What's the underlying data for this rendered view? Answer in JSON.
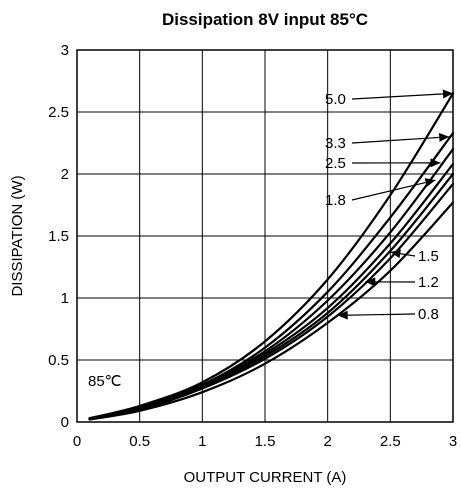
{
  "chart_data": {
    "type": "line",
    "title": "Dissipation 8V input 85°C",
    "xlabel": "OUTPUT CURRENT (A)",
    "ylabel": "DISSIPATION (W)",
    "xlim": [
      0,
      3
    ],
    "ylim": [
      0,
      3
    ],
    "x_ticks": [
      "0",
      "0.5",
      "1",
      "1.5",
      "2",
      "2.5",
      "3"
    ],
    "y_ticks": [
      "0",
      "0.5",
      "1",
      "1.5",
      "2",
      "2.5",
      "3"
    ],
    "grid": true,
    "annotation": "85℃",
    "series": [
      {
        "name": "5.0",
        "x": [
          0.1,
          0.5,
          1.0,
          1.5,
          2.0,
          2.5,
          3.0
        ],
        "y": [
          0.03,
          0.13,
          0.32,
          0.65,
          1.15,
          1.83,
          2.65
        ]
      },
      {
        "name": "3.3",
        "x": [
          0.1,
          0.5,
          1.0,
          1.5,
          2.0,
          2.5,
          3.0
        ],
        "y": [
          0.03,
          0.12,
          0.3,
          0.6,
          1.05,
          1.65,
          2.33
        ]
      },
      {
        "name": "2.5",
        "x": [
          0.1,
          0.5,
          1.0,
          1.5,
          2.0,
          2.5,
          3.0
        ],
        "y": [
          0.03,
          0.12,
          0.3,
          0.57,
          0.98,
          1.53,
          2.2
        ]
      },
      {
        "name": "1.8",
        "x": [
          0.1,
          0.5,
          1.0,
          1.5,
          2.0,
          2.5,
          3.0
        ],
        "y": [
          0.03,
          0.11,
          0.29,
          0.55,
          0.92,
          1.44,
          2.08
        ]
      },
      {
        "name": "1.5",
        "x": [
          0.1,
          0.5,
          1.0,
          1.5,
          2.0,
          2.5,
          3.0
        ],
        "y": [
          0.03,
          0.11,
          0.28,
          0.53,
          0.88,
          1.38,
          2.0
        ]
      },
      {
        "name": "1.2",
        "x": [
          0.1,
          0.5,
          1.0,
          1.5,
          2.0,
          2.5,
          3.0
        ],
        "y": [
          0.03,
          0.1,
          0.27,
          0.51,
          0.85,
          1.32,
          1.92
        ]
      },
      {
        "name": "0.8",
        "x": [
          0.1,
          0.5,
          1.0,
          1.5,
          2.0,
          2.5,
          3.0
        ],
        "y": [
          0.02,
          0.09,
          0.24,
          0.47,
          0.8,
          1.22,
          1.77
        ]
      }
    ],
    "labels": [
      {
        "series": "5.0",
        "text": "5.0",
        "arrow_to": [
          3.0,
          2.65
        ]
      },
      {
        "series": "3.3",
        "text": "3.3",
        "arrow_to": [
          2.97,
          2.3
        ]
      },
      {
        "series": "2.5",
        "text": "2.5",
        "arrow_to": [
          2.9,
          2.09
        ]
      },
      {
        "series": "1.8",
        "text": "1.8",
        "arrow_to": [
          2.86,
          1.95
        ]
      },
      {
        "series": "1.5",
        "text": "1.5",
        "arrow_to": [
          2.5,
          1.37
        ]
      },
      {
        "series": "1.2",
        "text": "1.2",
        "arrow_to": [
          2.3,
          1.13
        ]
      },
      {
        "series": "0.8",
        "text": "0.8",
        "arrow_to": [
          2.08,
          0.86
        ]
      }
    ]
  }
}
